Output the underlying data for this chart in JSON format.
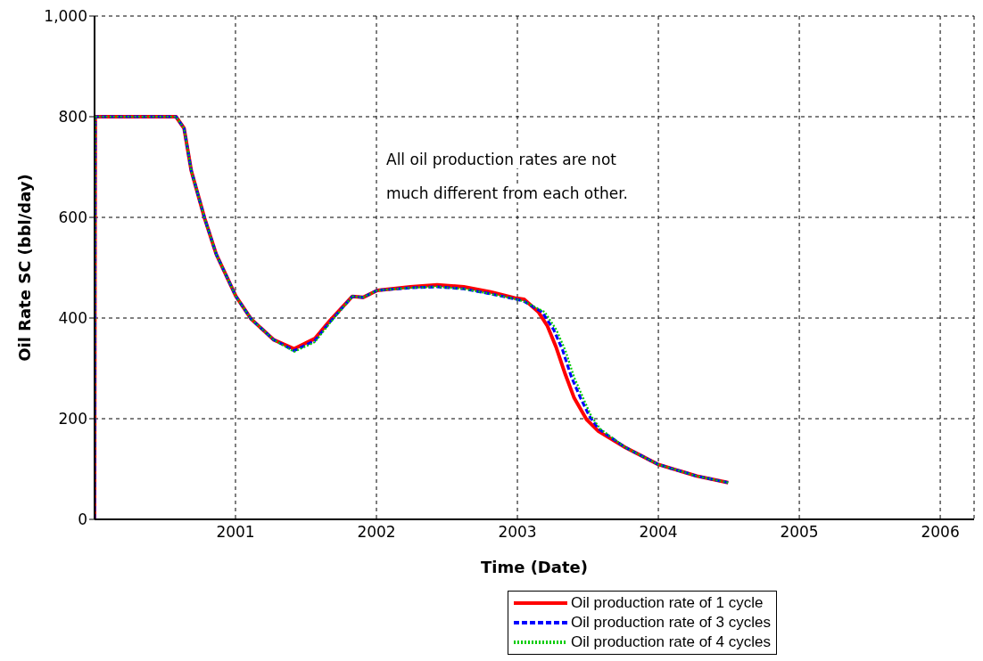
{
  "chart_data": {
    "type": "line",
    "xlabel": "Time (Date)",
    "ylabel": "Oil Rate SC (bbl/day)",
    "xlim": [
      2000,
      2006.24
    ],
    "xticks": [
      2001,
      2002,
      2003,
      2004,
      2005,
      2006
    ],
    "ylim": [
      0,
      1000
    ],
    "yticks": [
      0,
      200,
      400,
      600,
      800,
      {
        "value": 1000,
        "label": "1,000"
      }
    ],
    "grid": true,
    "legend": "bottom",
    "marker": "none",
    "annotations": [
      "All oil production rates are not much different from each other."
    ],
    "series": [
      {
        "name": "Oil production rate of 1 cycle",
        "color": "#ff0000",
        "line_style": "solid",
        "x": [
          2000,
          2000.005,
          2000.578,
          2000.635,
          2000.686,
          2000.781,
          2000.863,
          2001.003,
          2001.111,
          2001.27,
          2001.416,
          2001.562,
          2001.67,
          2001.829,
          2001.905,
          2002.006,
          2002.24,
          2002.43,
          2002.62,
          2002.81,
          2002.98,
          2003.048,
          2003.149,
          2003.213,
          2003.276,
          2003.34,
          2003.403,
          2003.492,
          2003.575,
          2003.765,
          2004.0,
          2004.273,
          2004.495
        ],
        "values": [
          0,
          800,
          800,
          777,
          693,
          598,
          527,
          443,
          398,
          357,
          339,
          359,
          395,
          443,
          441,
          455,
          462,
          466,
          462,
          452,
          440,
          437,
          412,
          384,
          341,
          288,
          241,
          198,
          175,
          143,
          109,
          86,
          73
        ]
      },
      {
        "name": "Oil production rate of 3 cycles",
        "color": "#0000ff",
        "line_style": "dashed",
        "x": [
          2000,
          2000.005,
          2000.578,
          2000.635,
          2000.686,
          2000.781,
          2000.863,
          2001.003,
          2001.111,
          2001.27,
          2001.416,
          2001.562,
          2001.67,
          2001.829,
          2001.905,
          2002.006,
          2002.24,
          2002.43,
          2002.62,
          2002.81,
          2002.98,
          2003.048,
          2003.175,
          2003.257,
          2003.321,
          2003.384,
          2003.448,
          2003.511,
          2003.575,
          2003.765,
          2004.0,
          2004.273,
          2004.495
        ],
        "values": [
          0,
          800,
          800,
          777,
          693,
          598,
          527,
          443,
          398,
          357,
          335,
          355,
          392,
          443,
          441,
          455,
          460,
          462,
          458,
          448,
          438,
          433,
          412,
          377,
          336,
          282,
          241,
          205,
          180,
          143,
          109,
          86,
          73
        ]
      },
      {
        "name": "Oil production rate of 4 cycles",
        "color": "#00cc00",
        "line_style": "dotted",
        "x": [
          2000,
          2000.005,
          2000.578,
          2000.635,
          2000.686,
          2000.781,
          2000.863,
          2001.003,
          2001.111,
          2001.27,
          2001.416,
          2001.562,
          2001.67,
          2001.829,
          2001.905,
          2002.006,
          2002.24,
          2002.43,
          2002.62,
          2002.81,
          2002.98,
          2003.048,
          2003.194,
          2003.276,
          2003.34,
          2003.403,
          2003.467,
          2003.524,
          2003.587,
          2003.765,
          2004.0,
          2004.273,
          2004.495
        ],
        "values": [
          0,
          800,
          800,
          777,
          693,
          598,
          527,
          443,
          398,
          357,
          333,
          352,
          390,
          443,
          441,
          455,
          460,
          462,
          458,
          448,
          438,
          433,
          412,
          377,
          336,
          282,
          241,
          205,
          180,
          143,
          109,
          86,
          73
        ]
      }
    ]
  }
}
